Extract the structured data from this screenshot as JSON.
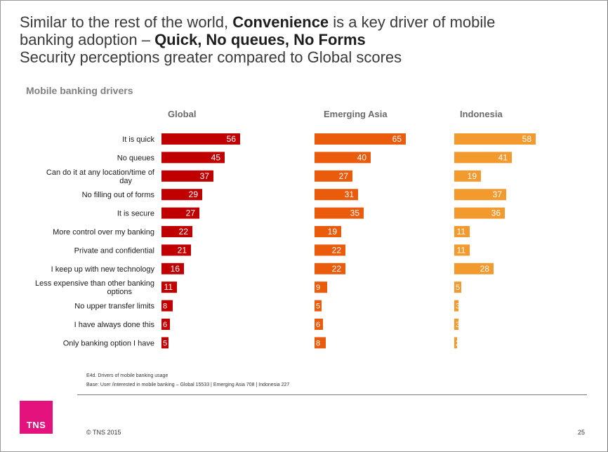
{
  "headline": {
    "l1_a": "Similar to the rest of the world, ",
    "l1_b": "Convenience",
    "l1_c": " is a key driver of mobile",
    "l2_a": "banking adoption – ",
    "l2_b": "Quick, No queues, No Forms",
    "l3": "Security perceptions greater compared to Global scores"
  },
  "chart_data": {
    "type": "bar",
    "orientation": "horizontal",
    "subtitle": "Mobile banking drivers",
    "categories": [
      "It is quick",
      "No queues",
      "Can do it at any location/time of day",
      "No filling out of forms",
      "It is secure",
      "More control over my banking",
      "Private and confidential",
      "I keep up with new technology",
      "Less expensive than other banking options",
      "No upper transfer limits",
      "I have always done this",
      "Only banking option I have"
    ],
    "series": [
      {
        "name": "Global",
        "color": "#c00000",
        "values": [
          56,
          45,
          37,
          29,
          27,
          22,
          21,
          16,
          11,
          8,
          6,
          5
        ]
      },
      {
        "name": "Emerging Asia",
        "color": "#ea5b0c",
        "values": [
          65,
          40,
          27,
          31,
          35,
          19,
          22,
          22,
          9,
          5,
          6,
          8
        ]
      },
      {
        "name": "Indonesia",
        "color": "#f39a2f",
        "values": [
          58,
          41,
          19,
          37,
          36,
          11,
          11,
          28,
          5,
          3,
          3,
          2
        ]
      }
    ]
  },
  "footer": {
    "source_line1": "E4d. Drivers of mobile banking usage",
    "source_line2": "Base: User /interested in mobile banking –  Global 15533 | Emerging Asia 708 | Indonesia 227",
    "logo_text": "TNS",
    "copyright": "© TNS 2015",
    "page_number": "25"
  }
}
